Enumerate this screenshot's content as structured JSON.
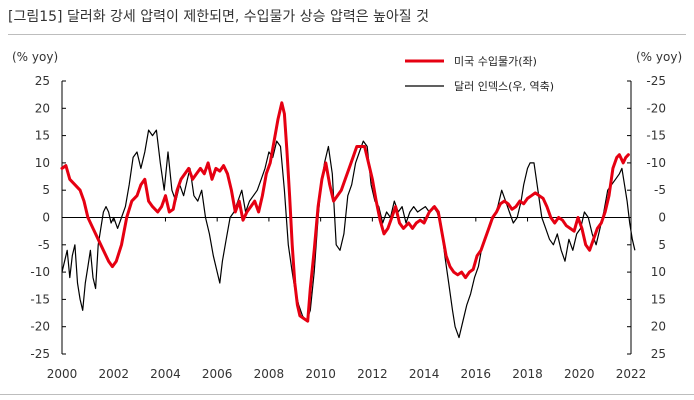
{
  "title": "[그림15]  달러화 강세 압력이 제한되면, 수입물가 상승 압력은 높아질 것",
  "chart_data": {
    "type": "line",
    "left_axis": {
      "label": "(% yoy)",
      "min": -25,
      "max": 25,
      "ticks": [
        25,
        20,
        15,
        10,
        5,
        0,
        -5,
        -10,
        -15,
        -20,
        -25
      ]
    },
    "right_axis": {
      "label": "(% yoy)",
      "inverted": true,
      "min": -25,
      "max": 25,
      "ticks": [
        -25,
        -20,
        -15,
        -10,
        -5,
        0,
        5,
        10,
        15,
        20,
        25
      ],
      "tick_labels": [
        "-25",
        "-20",
        "-15",
        "-10",
        "-5",
        "0",
        "5",
        "10",
        "15",
        "20",
        "25"
      ]
    },
    "x_axis": {
      "min": 2000,
      "max": 2022,
      "ticks": [
        2000,
        2002,
        2004,
        2006,
        2008,
        2010,
        2012,
        2014,
        2016,
        2018,
        2020,
        2022
      ]
    },
    "legend_position": "top-right",
    "series": [
      {
        "name": "미국 수입물가(좌)",
        "axis": "left",
        "color": "#e60012",
        "points": [
          [
            2000.0,
            9
          ],
          [
            2000.15,
            9.5
          ],
          [
            2000.3,
            7
          ],
          [
            2000.5,
            6
          ],
          [
            2000.7,
            5
          ],
          [
            2000.85,
            3
          ],
          [
            2001.0,
            0
          ],
          [
            2001.2,
            -2
          ],
          [
            2001.4,
            -4
          ],
          [
            2001.6,
            -6
          ],
          [
            2001.8,
            -8
          ],
          [
            2001.95,
            -9
          ],
          [
            2002.1,
            -8
          ],
          [
            2002.3,
            -5
          ],
          [
            2002.5,
            0
          ],
          [
            2002.7,
            3
          ],
          [
            2002.9,
            4
          ],
          [
            2003.05,
            6
          ],
          [
            2003.2,
            7
          ],
          [
            2003.35,
            3
          ],
          [
            2003.5,
            2
          ],
          [
            2003.7,
            1
          ],
          [
            2003.85,
            2
          ],
          [
            2004.0,
            4
          ],
          [
            2004.15,
            1
          ],
          [
            2004.3,
            1.5
          ],
          [
            2004.45,
            5
          ],
          [
            2004.6,
            7
          ],
          [
            2004.75,
            8
          ],
          [
            2004.9,
            9
          ],
          [
            2005.05,
            7
          ],
          [
            2005.2,
            8
          ],
          [
            2005.35,
            9
          ],
          [
            2005.5,
            8
          ],
          [
            2005.65,
            10
          ],
          [
            2005.8,
            7
          ],
          [
            2005.95,
            9
          ],
          [
            2006.1,
            8.5
          ],
          [
            2006.25,
            9.5
          ],
          [
            2006.4,
            8
          ],
          [
            2006.55,
            5
          ],
          [
            2006.7,
            1
          ],
          [
            2006.85,
            3
          ],
          [
            2007.0,
            -0.5
          ],
          [
            2007.15,
            1
          ],
          [
            2007.3,
            2
          ],
          [
            2007.45,
            3
          ],
          [
            2007.6,
            1
          ],
          [
            2007.75,
            4
          ],
          [
            2007.9,
            8
          ],
          [
            2008.05,
            10
          ],
          [
            2008.2,
            14
          ],
          [
            2008.35,
            18
          ],
          [
            2008.5,
            21
          ],
          [
            2008.6,
            19
          ],
          [
            2008.7,
            12
          ],
          [
            2008.8,
            4
          ],
          [
            2008.9,
            -5
          ],
          [
            2009.0,
            -12
          ],
          [
            2009.1,
            -16
          ],
          [
            2009.2,
            -18
          ],
          [
            2009.35,
            -18.5
          ],
          [
            2009.5,
            -19
          ],
          [
            2009.6,
            -13
          ],
          [
            2009.75,
            -6
          ],
          [
            2009.9,
            2
          ],
          [
            2010.05,
            7
          ],
          [
            2010.2,
            10
          ],
          [
            2010.35,
            6
          ],
          [
            2010.5,
            3
          ],
          [
            2010.65,
            4
          ],
          [
            2010.8,
            5
          ],
          [
            2010.95,
            7
          ],
          [
            2011.1,
            9
          ],
          [
            2011.25,
            11
          ],
          [
            2011.4,
            13
          ],
          [
            2011.55,
            13
          ],
          [
            2011.7,
            13
          ],
          [
            2011.85,
            10
          ],
          [
            2012.0,
            7
          ],
          [
            2012.15,
            3
          ],
          [
            2012.3,
            -0.5
          ],
          [
            2012.45,
            -3
          ],
          [
            2012.6,
            -2
          ],
          [
            2012.75,
            0
          ],
          [
            2012.9,
            2
          ],
          [
            2013.05,
            -1
          ],
          [
            2013.2,
            -2
          ],
          [
            2013.4,
            -1
          ],
          [
            2013.55,
            -2
          ],
          [
            2013.7,
            -1
          ],
          [
            2013.85,
            -0.5
          ],
          [
            2014.0,
            -1
          ],
          [
            2014.2,
            1
          ],
          [
            2014.4,
            2
          ],
          [
            2014.55,
            1
          ],
          [
            2014.7,
            -3
          ],
          [
            2014.85,
            -7
          ],
          [
            2015.0,
            -9
          ],
          [
            2015.15,
            -10
          ],
          [
            2015.3,
            -10.5
          ],
          [
            2015.45,
            -10
          ],
          [
            2015.6,
            -11
          ],
          [
            2015.75,
            -10
          ],
          [
            2015.9,
            -9.5
          ],
          [
            2016.05,
            -7
          ],
          [
            2016.2,
            -6
          ],
          [
            2016.35,
            -4
          ],
          [
            2016.5,
            -2
          ],
          [
            2016.65,
            0
          ],
          [
            2016.8,
            1
          ],
          [
            2016.95,
            2.5
          ],
          [
            2017.1,
            3
          ],
          [
            2017.25,
            2.5
          ],
          [
            2017.4,
            1.5
          ],
          [
            2017.55,
            2
          ],
          [
            2017.7,
            3
          ],
          [
            2017.85,
            2.5
          ],
          [
            2018.0,
            3.5
          ],
          [
            2018.15,
            4
          ],
          [
            2018.3,
            4.5
          ],
          [
            2018.45,
            4
          ],
          [
            2018.6,
            3.5
          ],
          [
            2018.75,
            2
          ],
          [
            2018.9,
            0
          ],
          [
            2019.05,
            -1
          ],
          [
            2019.2,
            0
          ],
          [
            2019.35,
            -0.5
          ],
          [
            2019.5,
            -1.5
          ],
          [
            2019.65,
            -2
          ],
          [
            2019.8,
            -2.5
          ],
          [
            2019.95,
            0
          ],
          [
            2020.1,
            -2
          ],
          [
            2020.25,
            -5
          ],
          [
            2020.4,
            -6
          ],
          [
            2020.55,
            -4
          ],
          [
            2020.7,
            -2
          ],
          [
            2020.85,
            -1
          ],
          [
            2021.0,
            1
          ],
          [
            2021.15,
            4
          ],
          [
            2021.3,
            9
          ],
          [
            2021.45,
            11
          ],
          [
            2021.55,
            11.5
          ],
          [
            2021.7,
            10
          ],
          [
            2021.8,
            11
          ],
          [
            2021.9,
            11.5
          ]
        ]
      },
      {
        "name": "달러 인덱스(우, 역축)",
        "axis": "right",
        "color": "#000000",
        "points": [
          [
            2000.0,
            10
          ],
          [
            2000.1,
            8
          ],
          [
            2000.2,
            6
          ],
          [
            2000.3,
            11
          ],
          [
            2000.4,
            7
          ],
          [
            2000.5,
            5
          ],
          [
            2000.6,
            12
          ],
          [
            2000.7,
            15
          ],
          [
            2000.8,
            17
          ],
          [
            2000.9,
            12
          ],
          [
            2001.0,
            9
          ],
          [
            2001.1,
            6
          ],
          [
            2001.2,
            11
          ],
          [
            2001.3,
            13
          ],
          [
            2001.4,
            5
          ],
          [
            2001.5,
            2
          ],
          [
            2001.6,
            -1
          ],
          [
            2001.7,
            -2
          ],
          [
            2001.8,
            -1
          ],
          [
            2001.9,
            1
          ],
          [
            2002.0,
            0
          ],
          [
            2002.15,
            2
          ],
          [
            2002.3,
            0
          ],
          [
            2002.45,
            -2
          ],
          [
            2002.6,
            -6
          ],
          [
            2002.75,
            -11
          ],
          [
            2002.9,
            -12
          ],
          [
            2003.05,
            -9
          ],
          [
            2003.2,
            -12
          ],
          [
            2003.35,
            -16
          ],
          [
            2003.5,
            -15
          ],
          [
            2003.65,
            -16
          ],
          [
            2003.8,
            -10
          ],
          [
            2003.95,
            -5
          ],
          [
            2004.1,
            -12
          ],
          [
            2004.25,
            -5
          ],
          [
            2004.4,
            -3
          ],
          [
            2004.55,
            -6
          ],
          [
            2004.7,
            -4
          ],
          [
            2004.85,
            -7
          ],
          [
            2004.95,
            -9
          ],
          [
            2005.1,
            -4
          ],
          [
            2005.25,
            -3
          ],
          [
            2005.4,
            -5
          ],
          [
            2005.55,
            0
          ],
          [
            2005.7,
            3
          ],
          [
            2005.85,
            7
          ],
          [
            2006.0,
            10
          ],
          [
            2006.1,
            12
          ],
          [
            2006.2,
            8
          ],
          [
            2006.35,
            4
          ],
          [
            2006.5,
            0
          ],
          [
            2006.65,
            -1
          ],
          [
            2006.8,
            -3
          ],
          [
            2006.95,
            -5
          ],
          [
            2007.1,
            -1
          ],
          [
            2007.25,
            -3
          ],
          [
            2007.4,
            -4
          ],
          [
            2007.55,
            -5
          ],
          [
            2007.7,
            -7
          ],
          [
            2007.85,
            -9
          ],
          [
            2008.0,
            -12
          ],
          [
            2008.15,
            -11
          ],
          [
            2008.3,
            -14
          ],
          [
            2008.45,
            -13
          ],
          [
            2008.6,
            -5
          ],
          [
            2008.75,
            5
          ],
          [
            2008.9,
            10
          ],
          [
            2009.0,
            13
          ],
          [
            2009.15,
            16
          ],
          [
            2009.3,
            18
          ],
          [
            2009.45,
            19
          ],
          [
            2009.6,
            17
          ],
          [
            2009.75,
            10
          ],
          [
            2009.9,
            0
          ],
          [
            2010.0,
            -5
          ],
          [
            2010.15,
            -10
          ],
          [
            2010.3,
            -13
          ],
          [
            2010.45,
            -8
          ],
          [
            2010.6,
            5
          ],
          [
            2010.75,
            6
          ],
          [
            2010.9,
            3
          ],
          [
            2011.05,
            -4
          ],
          [
            2011.2,
            -6
          ],
          [
            2011.35,
            -10
          ],
          [
            2011.5,
            -12
          ],
          [
            2011.65,
            -14
          ],
          [
            2011.8,
            -13
          ],
          [
            2011.95,
            -6
          ],
          [
            2012.1,
            -3
          ],
          [
            2012.25,
            -2
          ],
          [
            2012.4,
            1
          ],
          [
            2012.55,
            -1
          ],
          [
            2012.7,
            0
          ],
          [
            2012.85,
            -3
          ],
          [
            2013.0,
            -1
          ],
          [
            2013.15,
            -2
          ],
          [
            2013.3,
            1
          ],
          [
            2013.45,
            -1
          ],
          [
            2013.6,
            -2
          ],
          [
            2013.75,
            -1
          ],
          [
            2013.9,
            -1.5
          ],
          [
            2014.05,
            -2
          ],
          [
            2014.2,
            -1
          ],
          [
            2014.35,
            -2
          ],
          [
            2014.5,
            -1
          ],
          [
            2014.65,
            1
          ],
          [
            2014.8,
            7
          ],
          [
            2014.95,
            12
          ],
          [
            2015.1,
            17
          ],
          [
            2015.2,
            20
          ],
          [
            2015.35,
            22
          ],
          [
            2015.5,
            19
          ],
          [
            2015.65,
            16
          ],
          [
            2015.8,
            14
          ],
          [
            2015.95,
            11
          ],
          [
            2016.1,
            9
          ],
          [
            2016.25,
            5
          ],
          [
            2016.4,
            3
          ],
          [
            2016.55,
            1
          ],
          [
            2016.7,
            0
          ],
          [
            2016.85,
            -2
          ],
          [
            2017.0,
            -5
          ],
          [
            2017.15,
            -3
          ],
          [
            2017.3,
            -1
          ],
          [
            2017.45,
            1
          ],
          [
            2017.6,
            0
          ],
          [
            2017.75,
            -3
          ],
          [
            2017.85,
            -6
          ],
          [
            2018.0,
            -9
          ],
          [
            2018.1,
            -10
          ],
          [
            2018.25,
            -10
          ],
          [
            2018.4,
            -5
          ],
          [
            2018.55,
            0
          ],
          [
            2018.7,
            2
          ],
          [
            2018.85,
            4
          ],
          [
            2019.0,
            5
          ],
          [
            2019.15,
            3
          ],
          [
            2019.3,
            6
          ],
          [
            2019.45,
            8
          ],
          [
            2019.6,
            4
          ],
          [
            2019.75,
            6
          ],
          [
            2019.9,
            3
          ],
          [
            2020.05,
            2
          ],
          [
            2020.2,
            -1
          ],
          [
            2020.35,
            0
          ],
          [
            2020.5,
            3
          ],
          [
            2020.65,
            5
          ],
          [
            2020.8,
            2
          ],
          [
            2020.95,
            -1
          ],
          [
            2021.1,
            -5
          ],
          [
            2021.25,
            -6
          ],
          [
            2021.4,
            -7
          ],
          [
            2021.55,
            -8
          ],
          [
            2021.65,
            -9
          ],
          [
            2021.75,
            -6
          ],
          [
            2021.85,
            -3
          ],
          [
            2021.95,
            1
          ],
          [
            2022.05,
            4
          ],
          [
            2022.15,
            6
          ]
        ]
      }
    ]
  }
}
